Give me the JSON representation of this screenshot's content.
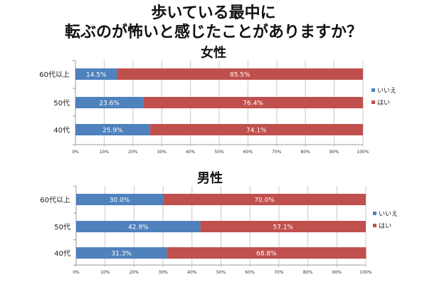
{
  "title_line1": "歩いている最中に",
  "title_line2": "転ぶのが怖いと感じたことがありますか？",
  "chart_data": [
    {
      "type": "bar",
      "orientation": "horizontal",
      "stacked": "percent",
      "title": "女性",
      "categories": [
        "60代以上",
        "50代",
        "40代"
      ],
      "series": [
        {
          "name": "いいえ",
          "color": "#4f81bd",
          "values": [
            14.5,
            23.6,
            25.9
          ],
          "labels": [
            "14.5%",
            "23.6%",
            "25.9%"
          ]
        },
        {
          "name": "はい",
          "color": "#c0504d",
          "values": [
            85.5,
            76.4,
            74.1
          ],
          "labels": [
            "85.5%",
            "76.4%",
            "74.1%"
          ]
        }
      ],
      "xlim": [
        0,
        100
      ],
      "xticks": [
        "0%",
        "10%",
        "20%",
        "30%",
        "40%",
        "50%",
        "60%",
        "70%",
        "80%",
        "90%",
        "100%"
      ],
      "grid": true,
      "legend": "right"
    },
    {
      "type": "bar",
      "orientation": "horizontal",
      "stacked": "percent",
      "title": "男性",
      "categories": [
        "60代以上",
        "50代",
        "40代"
      ],
      "series": [
        {
          "name": "いいえ",
          "color": "#4f81bd",
          "values": [
            30.0,
            42.9,
            31.3
          ],
          "labels": [
            "30.0%",
            "42.9%",
            "31.3%"
          ]
        },
        {
          "name": "はい",
          "color": "#c0504d",
          "values": [
            70.0,
            57.1,
            68.8
          ],
          "labels": [
            "70.0%",
            "57.1%",
            "68.8%"
          ]
        }
      ],
      "xlim": [
        0,
        100
      ],
      "xticks": [
        "0%",
        "10%",
        "20%",
        "30%",
        "40%",
        "50%",
        "60%",
        "70%",
        "80%",
        "90%",
        "100%"
      ],
      "grid": true,
      "legend": "right"
    }
  ]
}
